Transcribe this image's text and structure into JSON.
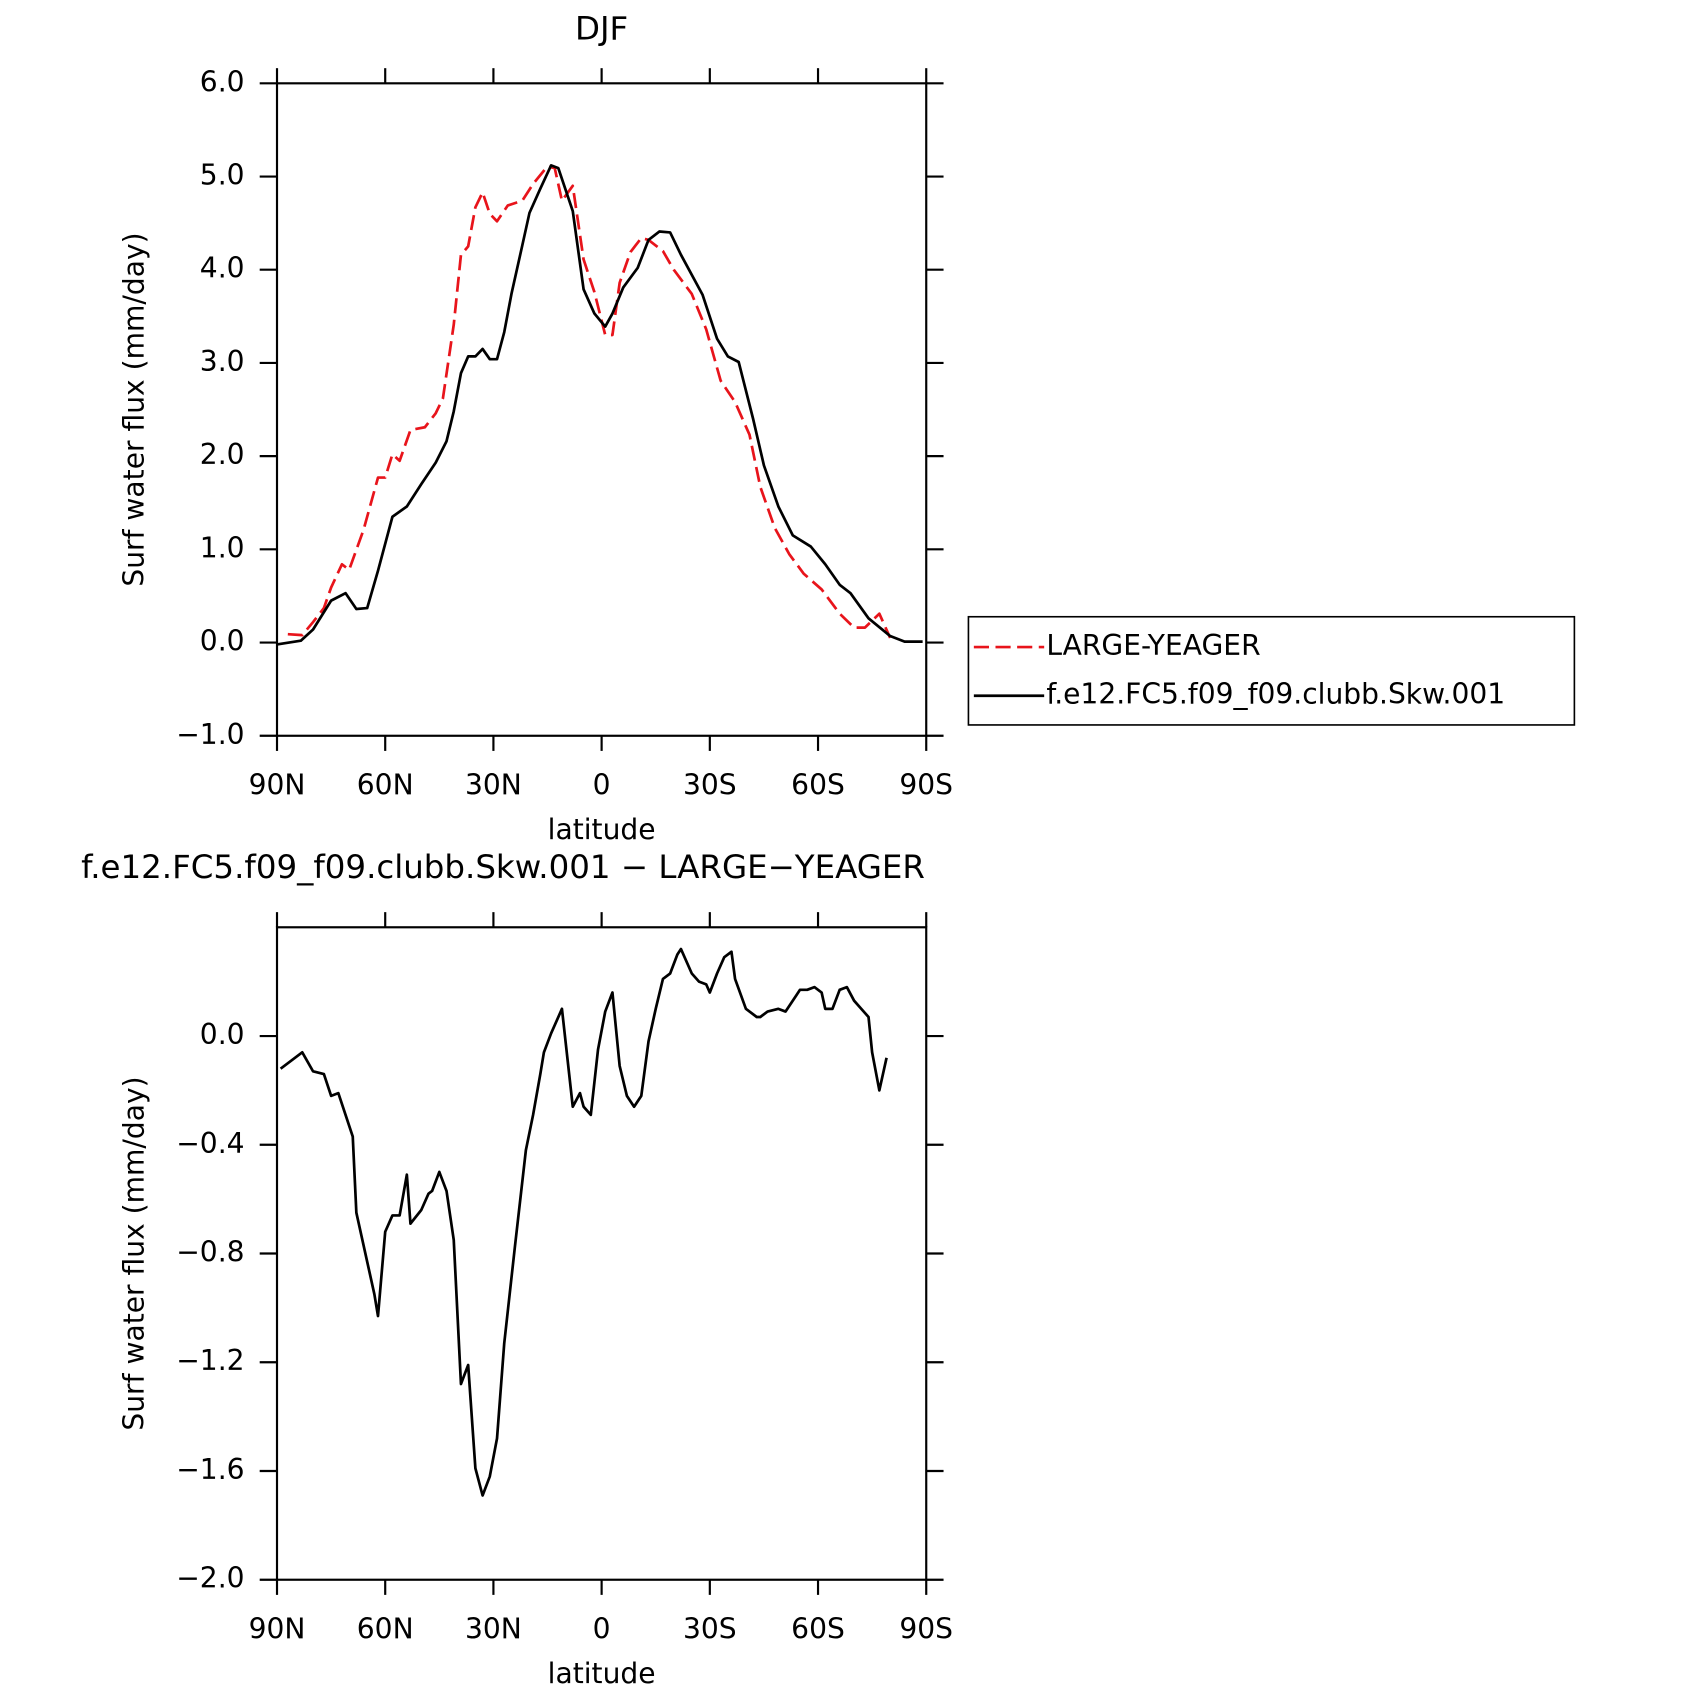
{
  "chart_data": [
    {
      "type": "line",
      "title": "DJF",
      "xlabel": "latitude",
      "ylabel": "Surf water flux (mm/day)",
      "xlim": [
        90,
        -90
      ],
      "xticks": [
        {
          "value": 90,
          "label": "90N"
        },
        {
          "value": 60,
          "label": "60N"
        },
        {
          "value": 30,
          "label": "30N"
        },
        0,
        {
          "value": -30,
          "label": "30S"
        },
        {
          "value": -60,
          "label": "60S"
        },
        {
          "value": -90,
          "label": "90S"
        }
      ],
      "ylim": [
        -1,
        6
      ],
      "yticks": [
        {
          "value": -1,
          "label": "−1.0"
        },
        {
          "value": 0,
          "label": "0.0"
        },
        {
          "value": 1,
          "label": "1.0"
        },
        {
          "value": 2,
          "label": "2.0"
        },
        {
          "value": 3,
          "label": "3.0"
        },
        {
          "value": 4,
          "label": "4.0"
        },
        {
          "value": 5,
          "label": "5.0"
        },
        {
          "value": 6,
          "label": "6.0"
        }
      ],
      "legend": "right",
      "series": [
        {
          "name": "LARGE-YEAGER",
          "color": "#e8141b",
          "dashed": true,
          "x": [
            87,
            83,
            80,
            77,
            75,
            72,
            70,
            66,
            62,
            60,
            58,
            56,
            53,
            49,
            46,
            44,
            41,
            39,
            37,
            35,
            33,
            31,
            29,
            26,
            22,
            19,
            15,
            13,
            11,
            8,
            5,
            2,
            -1,
            -3,
            -5,
            -8,
            -11,
            -13,
            -17,
            -20,
            -25,
            -29,
            -33,
            -37,
            -41,
            -44,
            -48,
            -52,
            -56,
            -61,
            -66,
            -70,
            -73,
            -77,
            -80
          ],
          "values": [
            0.09,
            0.08,
            0.22,
            0.37,
            0.59,
            0.84,
            0.78,
            1.21,
            1.77,
            1.77,
            2.02,
            1.95,
            2.28,
            2.31,
            2.46,
            2.62,
            3.41,
            4.16,
            4.25,
            4.67,
            4.83,
            4.6,
            4.52,
            4.69,
            4.74,
            4.92,
            5.11,
            5.09,
            4.74,
            4.9,
            4.11,
            3.76,
            3.3,
            3.3,
            3.86,
            4.19,
            4.34,
            4.32,
            4.2,
            4.0,
            3.74,
            3.36,
            2.81,
            2.58,
            2.23,
            1.67,
            1.23,
            0.95,
            0.74,
            0.57,
            0.31,
            0.16,
            0.16,
            0.31,
            0.05
          ]
        },
        {
          "name": "f.e12.FC5.f09_f09.clubb.Skw.001",
          "color": "#000000",
          "dashed": false,
          "x": [
            90,
            83.4,
            80,
            75,
            71,
            68,
            65,
            62,
            58,
            54,
            50,
            46,
            43,
            41,
            39,
            37,
            35,
            33,
            31,
            29,
            27,
            25,
            22,
            20,
            17,
            14,
            12,
            8,
            5,
            2,
            -1,
            -3,
            -6,
            -10,
            -13,
            -16,
            -19,
            -22,
            -28,
            -32,
            -35,
            -38,
            -42,
            -45,
            -49,
            -53,
            -58,
            -62,
            -66,
            -69,
            -74,
            -80,
            -84,
            -89
          ],
          "values": [
            -0.02,
            0.02,
            0.14,
            0.45,
            0.53,
            0.36,
            0.37,
            0.77,
            1.35,
            1.46,
            1.7,
            1.93,
            2.16,
            2.48,
            2.89,
            3.07,
            3.07,
            3.15,
            3.04,
            3.04,
            3.33,
            3.74,
            4.26,
            4.61,
            4.87,
            5.12,
            5.09,
            4.63,
            3.79,
            3.53,
            3.39,
            3.53,
            3.81,
            4.02,
            4.32,
            4.41,
            4.4,
            4.16,
            3.73,
            3.26,
            3.07,
            3.01,
            2.4,
            1.9,
            1.46,
            1.15,
            1.03,
            0.84,
            0.62,
            0.53,
            0.26,
            0.07,
            0.01,
            0.01
          ]
        }
      ]
    },
    {
      "type": "line",
      "title": "f.e12.FC5.f09_f09.clubb.Skw.001 − LARGE−YEAGER",
      "xlabel": "latitude",
      "ylabel": "Surf water flux (mm/day)",
      "xlim": [
        90,
        -90
      ],
      "xticks": [
        {
          "value": 90,
          "label": "90N"
        },
        {
          "value": 60,
          "label": "60N"
        },
        {
          "value": 30,
          "label": "30N"
        },
        0,
        {
          "value": -30,
          "label": "30S"
        },
        {
          "value": -60,
          "label": "60S"
        },
        {
          "value": -90,
          "label": "90S"
        }
      ],
      "ylim": [
        -2,
        0.4
      ],
      "yticks": [
        {
          "value": -2,
          "label": "−2.0"
        },
        {
          "value": -1.6,
          "label": "−1.6"
        },
        {
          "value": -1.2,
          "label": "−1.2"
        },
        {
          "value": -0.8,
          "label": "−0.8"
        },
        {
          "value": -0.4,
          "label": "−0.4"
        },
        {
          "value": 0,
          "label": "0.0"
        }
      ],
      "color": "#000000",
      "x": [
        89,
        83,
        80,
        77,
        75,
        73,
        71,
        69,
        68,
        65,
        63,
        62,
        60,
        58,
        56,
        54,
        53,
        50,
        48,
        47,
        45,
        43,
        41,
        39,
        37,
        35,
        33,
        31,
        29,
        27,
        24,
        21,
        19,
        17,
        16,
        14,
        11,
        8,
        6,
        5,
        3,
        1,
        -1,
        -3,
        -5,
        -7,
        -9,
        -11,
        -13,
        -15,
        -17,
        -19,
        -21,
        -22,
        -25,
        -27,
        -29,
        -30,
        -32,
        -34,
        -36,
        -37,
        -40,
        -43,
        -44,
        -46,
        -49,
        -51,
        -54,
        -55,
        -57,
        -59,
        -61,
        -62,
        -64,
        -66,
        -68,
        -70,
        -72,
        -74,
        -75,
        -77,
        -79
      ],
      "values": [
        -0.12,
        -0.06,
        -0.13,
        -0.14,
        -0.22,
        -0.21,
        -0.29,
        -0.37,
        -0.65,
        -0.83,
        -0.95,
        -1.03,
        -0.72,
        -0.66,
        -0.66,
        -0.51,
        -0.69,
        -0.64,
        -0.58,
        -0.57,
        -0.5,
        -0.57,
        -0.75,
        -1.28,
        -1.21,
        -1.59,
        -1.69,
        -1.62,
        -1.48,
        -1.13,
        -0.77,
        -0.42,
        -0.29,
        -0.14,
        -0.06,
        0.01,
        0.1,
        -0.26,
        -0.21,
        -0.26,
        -0.29,
        -0.05,
        0.09,
        0.16,
        -0.11,
        -0.22,
        -0.26,
        -0.22,
        -0.02,
        0.1,
        0.21,
        0.23,
        0.3,
        0.32,
        0.23,
        0.2,
        0.19,
        0.16,
        0.23,
        0.29,
        0.31,
        0.21,
        0.1,
        0.07,
        0.07,
        0.09,
        0.1,
        0.09,
        0.15,
        0.17,
        0.17,
        0.18,
        0.16,
        0.1,
        0.1,
        0.17,
        0.18,
        0.13,
        0.1,
        0.07,
        -0.06,
        -0.2,
        -0.08
      ]
    }
  ]
}
